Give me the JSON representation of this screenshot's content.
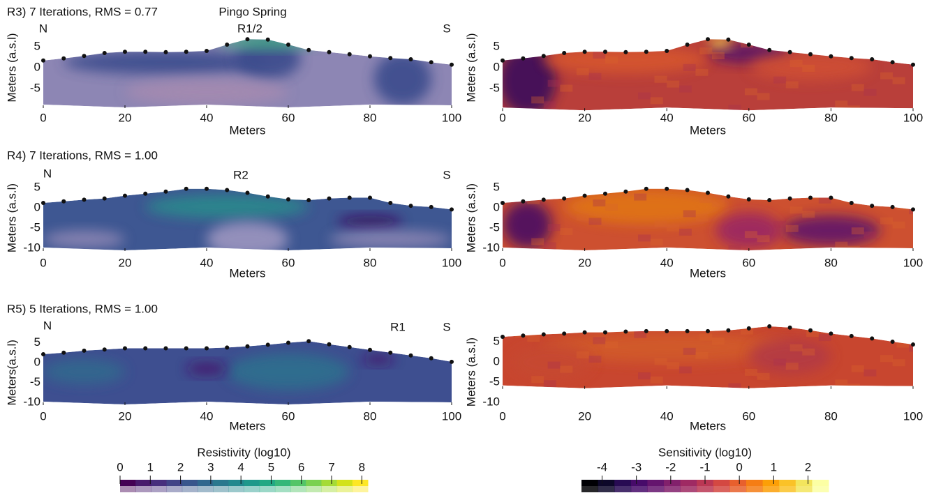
{
  "rows": [
    {
      "title": "R3) 7 Iterations, RMS = 0.77",
      "annotations": [
        "Pingo Spring",
        "N",
        "R1/2",
        "S"
      ],
      "panels": [
        {
          "ylabel": "Meters (a.s.l)",
          "xlabel": "Meters",
          "xlim": [
            0,
            100
          ],
          "xticks": [
            0,
            20,
            40,
            60,
            80,
            100
          ],
          "yticks": [
            5,
            0,
            -5
          ],
          "bottom": -9,
          "electrodes": {
            "x": [
              0,
              5,
              10,
              15,
              20,
              25,
              30,
              35,
              40,
              45,
              50,
              55,
              60,
              65,
              70,
              75,
              80,
              85,
              90,
              95,
              100
            ],
            "elevation": [
              1.7,
              2.2,
              2.8,
              3.5,
              3.8,
              3.8,
              3.7,
              3.8,
              4,
              5.5,
              6.8,
              6.7,
              5.5,
              4.2,
              3.7,
              3.2,
              2.7,
              2.3,
              2,
              1.3,
              0.7
            ]
          }
        },
        {
          "ylabel": "Meters (a.s.l)",
          "xlabel": "Meters",
          "xlim": [
            0,
            100
          ],
          "xticks": [
            0,
            20,
            40,
            60,
            80,
            100
          ],
          "yticks": [
            5,
            0,
            -5
          ],
          "bottom": -9.7,
          "electrodes": {
            "x": [
              0,
              5,
              10,
              15,
              20,
              25,
              30,
              35,
              40,
              45,
              50,
              55,
              60,
              65,
              70,
              75,
              80,
              85,
              90,
              95,
              100
            ],
            "elevation": [
              1.7,
              2.2,
              2.8,
              3.5,
              3.8,
              3.8,
              3.7,
              3.8,
              4,
              5.5,
              6.8,
              6.7,
              5.5,
              4.2,
              3.7,
              3.2,
              2.7,
              2.3,
              2,
              1.3,
              0.7
            ]
          }
        }
      ]
    },
    {
      "title": "R4) 7 Iterations, RMS = 1.00",
      "annotations": [
        "N",
        "R2",
        "S"
      ],
      "panels": [
        {
          "ylabel": "Meters (a.s.l)",
          "xlabel": "Meters",
          "xlim": [
            0,
            100
          ],
          "xticks": [
            0,
            20,
            40,
            60,
            80,
            100
          ],
          "yticks": [
            5,
            0,
            -5,
            -10
          ],
          "bottom": -10,
          "electrodes": {
            "x": [
              0,
              5,
              10,
              15,
              20,
              25,
              30,
              35,
              40,
              45,
              50,
              55,
              60,
              65,
              70,
              75,
              80,
              85,
              90,
              95,
              100
            ],
            "elevation": [
              1.2,
              1.6,
              2,
              2.3,
              3,
              3.5,
              4,
              4.7,
              4.7,
              4.4,
              3.7,
              2.8,
              2.1,
              1.9,
              2.3,
              2.5,
              2.5,
              1.2,
              0.5,
              0.2,
              -0.4
            ]
          }
        },
        {
          "ylabel": "Meters (a.s.l)",
          "xlabel": "Meters",
          "xlim": [
            0,
            100
          ],
          "xticks": [
            0,
            20,
            40,
            60,
            80,
            100
          ],
          "yticks": [
            5,
            0,
            -5,
            -10
          ],
          "bottom": -10,
          "electrodes": {
            "x": [
              0,
              5,
              10,
              15,
              20,
              25,
              30,
              35,
              40,
              45,
              50,
              55,
              60,
              65,
              70,
              75,
              80,
              85,
              90,
              95,
              100
            ],
            "elevation": [
              1.2,
              1.6,
              2,
              2.3,
              3,
              3.5,
              4,
              4.7,
              4.7,
              4.4,
              3.7,
              2.8,
              2.1,
              1.9,
              2.3,
              2.5,
              2.5,
              1.2,
              0.5,
              0.2,
              -0.4
            ]
          }
        }
      ]
    },
    {
      "title": "R5) 5 Iterations, RMS = 1.00",
      "annotations": [
        "N",
        "R1",
        "S"
      ],
      "panels": [
        {
          "ylabel": "Meters(a.s.l)",
          "xlabel": "Meters",
          "xlim": [
            0,
            100
          ],
          "xticks": [
            0,
            20,
            40,
            60,
            80,
            100
          ],
          "yticks": [
            5,
            0,
            -5,
            -10
          ],
          "bottom": -10,
          "electrodes": {
            "x": [
              0,
              5,
              10,
              15,
              20,
              25,
              30,
              35,
              40,
              45,
              50,
              55,
              60,
              65,
              70,
              75,
              80,
              85,
              90,
              95,
              100
            ],
            "elevation": [
              2.1,
              2.5,
              3,
              3.3,
              3.6,
              3.6,
              3.6,
              3.6,
              3.6,
              3.8,
              4.1,
              4.5,
              5,
              5.4,
              4.6,
              3.9,
              3.2,
              2.5,
              1.8,
              1.1,
              0.2
            ]
          }
        },
        {
          "ylabel": "Meters (a.s.l)",
          "xlabel": "Meters",
          "xlim": [
            0,
            100
          ],
          "xticks": [
            0,
            20,
            40,
            60,
            80,
            100
          ],
          "yticks": [
            5,
            0,
            -5,
            -10
          ],
          "bottom": -6,
          "electrodes": {
            "x": [
              0,
              5,
              10,
              15,
              20,
              25,
              30,
              35,
              40,
              45,
              50,
              55,
              60,
              65,
              70,
              75,
              80,
              85,
              90,
              95,
              100
            ],
            "elevation": [
              6.2,
              6.5,
              6.8,
              7,
              7.3,
              7.3,
              7.5,
              7.6,
              7.6,
              7.6,
              7.6,
              7.8,
              8.3,
              8.8,
              8.5,
              7.8,
              7,
              6.4,
              5.8,
              5,
              4.3
            ]
          }
        }
      ]
    }
  ],
  "colorbars": [
    {
      "label": "Resistivity (log10)",
      "lim": [
        0,
        8.2
      ],
      "ticks": [
        0,
        1,
        2,
        3,
        4,
        5,
        6,
        7,
        8
      ],
      "colors": [
        "#440154",
        "#481a6c",
        "#472f7d",
        "#414487",
        "#39568c",
        "#31688e",
        "#2a788e",
        "#23888e",
        "#1f988b",
        "#22a884",
        "#35b779",
        "#54c568",
        "#7ad151",
        "#a5db36",
        "#d2e21b",
        "#fde725"
      ]
    },
    {
      "label": "Sensitivity (log10)",
      "lim": [
        -4.6,
        2.6
      ],
      "ticks": [
        -4,
        -3,
        -2,
        -1,
        0,
        1,
        2
      ],
      "colors": [
        "#000004",
        "#0d0829",
        "#280b53",
        "#470b6a",
        "#65156e",
        "#82206c",
        "#9f2a63",
        "#bb3754",
        "#d44842",
        "#e8602d",
        "#f57d15",
        "#fc9f07",
        "#fac228",
        "#f3e55d",
        "#fcffa4"
      ]
    }
  ]
}
